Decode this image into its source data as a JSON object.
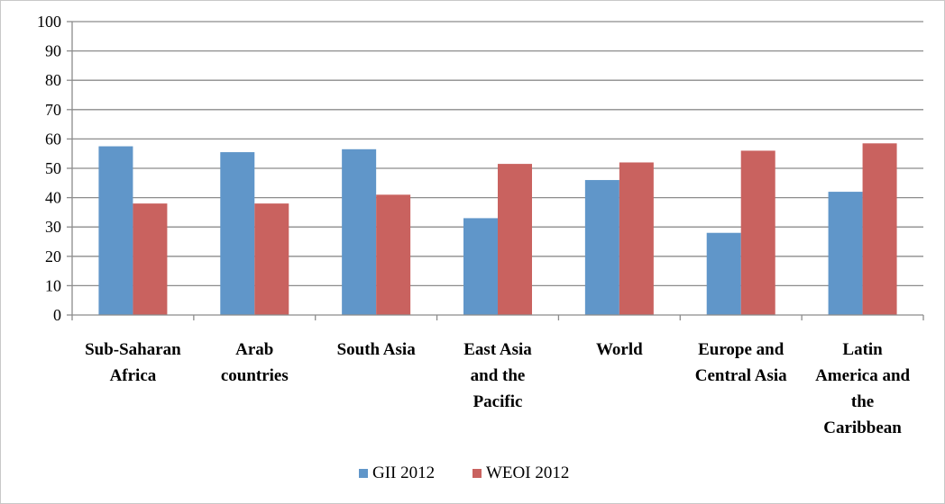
{
  "chart_data": {
    "type": "bar",
    "title": "",
    "xlabel": "",
    "ylabel": "",
    "ylim": [
      0,
      100
    ],
    "yticks": [
      0,
      10,
      20,
      30,
      40,
      50,
      60,
      70,
      80,
      90,
      100
    ],
    "grid": true,
    "legend_position": "bottom",
    "categories": [
      [
        "Sub-Saharan",
        "Africa"
      ],
      [
        "Arab",
        "countries"
      ],
      [
        "South Asia"
      ],
      [
        "East Asia",
        "and the",
        "Pacific"
      ],
      [
        "World"
      ],
      [
        "Europe and",
        "Central Asia"
      ],
      [
        "Latin",
        "America and",
        "the",
        "Caribbean"
      ]
    ],
    "series": [
      {
        "name": "GII 2012",
        "color": "#6096c9",
        "values": [
          57.5,
          55.5,
          56.5,
          33,
          46,
          28,
          42
        ]
      },
      {
        "name": "WEOI 2012",
        "color": "#c9625f",
        "values": [
          38,
          38,
          41,
          51.5,
          52,
          56,
          58.5
        ]
      }
    ]
  }
}
